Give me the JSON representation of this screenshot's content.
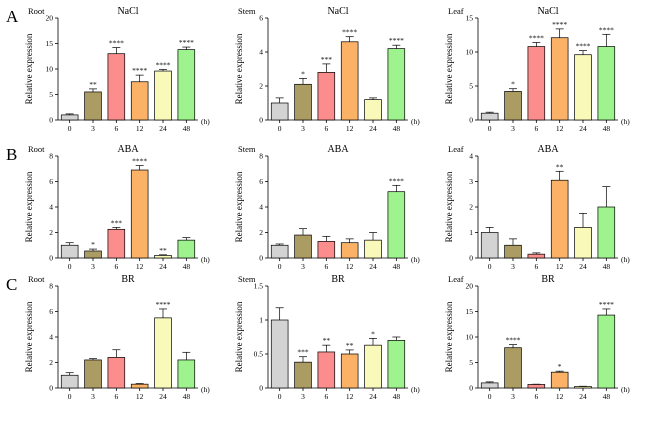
{
  "colors": [
    "#d3d3d3",
    "#ab9c63",
    "#fb8d8d",
    "#fbb266",
    "#f9f9b9",
    "#9ff38e"
  ],
  "rows": [
    "A",
    "B",
    "C"
  ],
  "common": {
    "ylabel": "Relative expression",
    "unit": "(h)",
    "categories": [
      "0",
      "3",
      "6",
      "12",
      "24",
      "48"
    ]
  },
  "chart_data": [
    {
      "type": "bar",
      "row": 0,
      "col": 0,
      "title": "NaCl",
      "organ": "Root",
      "categories": [
        "0",
        "3",
        "6",
        "12",
        "24",
        "48"
      ],
      "values": [
        1.0,
        5.5,
        13.0,
        7.5,
        9.6,
        13.8
      ],
      "errors": [
        0.2,
        0.6,
        1.2,
        1.3,
        0.3,
        0.5
      ],
      "stars": [
        "",
        "**",
        "****",
        "****",
        "****",
        "****"
      ],
      "ylim": [
        0,
        20
      ],
      "yticks": [
        0,
        5,
        10,
        15,
        20
      ],
      "xlabel": "(h)",
      "ylabel": "Relative expression"
    },
    {
      "type": "bar",
      "row": 0,
      "col": 1,
      "title": "NaCl",
      "organ": "Stem",
      "categories": [
        "0",
        "3",
        "6",
        "12",
        "24",
        "48"
      ],
      "values": [
        1.0,
        2.1,
        2.8,
        4.6,
        1.2,
        4.2
      ],
      "errors": [
        0.3,
        0.35,
        0.5,
        0.3,
        0.1,
        0.2
      ],
      "stars": [
        "",
        "*",
        "***",
        "****",
        "",
        "****"
      ],
      "ylim": [
        0,
        6
      ],
      "yticks": [
        0,
        2,
        4,
        6
      ],
      "xlabel": "(h)",
      "ylabel": "Relative expression"
    },
    {
      "type": "bar",
      "row": 0,
      "col": 2,
      "title": "NaCl",
      "organ": "Leaf",
      "categories": [
        "0",
        "3",
        "6",
        "12",
        "24",
        "48"
      ],
      "values": [
        1.0,
        4.2,
        10.8,
        12.1,
        9.6,
        10.8
      ],
      "errors": [
        0.15,
        0.4,
        0.6,
        1.3,
        0.6,
        1.8
      ],
      "stars": [
        "",
        "*",
        "****",
        "****",
        "****",
        "****"
      ],
      "ylim": [
        0,
        15
      ],
      "yticks": [
        0,
        5,
        10,
        15
      ],
      "xlabel": "(h)",
      "ylabel": "Relative expression"
    },
    {
      "type": "bar",
      "row": 1,
      "col": 0,
      "title": "ABA",
      "organ": "Root",
      "categories": [
        "0",
        "3",
        "6",
        "12",
        "24",
        "48"
      ],
      "values": [
        1.0,
        0.55,
        2.25,
        6.9,
        0.2,
        1.4
      ],
      "errors": [
        0.2,
        0.15,
        0.15,
        0.35,
        0.05,
        0.2
      ],
      "stars": [
        "",
        "*",
        "***",
        "****",
        "**",
        ""
      ],
      "ylim": [
        0,
        8
      ],
      "yticks": [
        0,
        2,
        4,
        6,
        8
      ],
      "xlabel": "(h)",
      "ylabel": "Relative expression"
    },
    {
      "type": "bar",
      "row": 1,
      "col": 1,
      "title": "ABA",
      "organ": "Stem",
      "categories": [
        "0",
        "3",
        "6",
        "12",
        "24",
        "48"
      ],
      "values": [
        1.0,
        1.8,
        1.3,
        1.2,
        1.4,
        5.2
      ],
      "errors": [
        0.1,
        0.5,
        0.4,
        0.3,
        0.6,
        0.5
      ],
      "stars": [
        "",
        "",
        "",
        "",
        "",
        "****"
      ],
      "ylim": [
        0,
        8
      ],
      "yticks": [
        0,
        2,
        4,
        6,
        8
      ],
      "xlabel": "(h)",
      "ylabel": "Relative expression"
    },
    {
      "type": "bar",
      "row": 1,
      "col": 2,
      "title": "ABA",
      "organ": "Leaf",
      "categories": [
        "0",
        "3",
        "6",
        "12",
        "24",
        "48"
      ],
      "values": [
        1.0,
        0.5,
        0.15,
        3.05,
        1.2,
        2.0
      ],
      "errors": [
        0.2,
        0.25,
        0.05,
        0.35,
        0.55,
        0.8
      ],
      "stars": [
        "",
        "",
        "",
        "**",
        "",
        ""
      ],
      "ylim": [
        0,
        4
      ],
      "yticks": [
        0,
        1,
        2,
        3,
        4
      ],
      "xlabel": "(h)",
      "ylabel": "Relative expression"
    },
    {
      "type": "bar",
      "row": 2,
      "col": 0,
      "title": "BR",
      "organ": "Root",
      "categories": [
        "0",
        "3",
        "6",
        "12",
        "24",
        "48"
      ],
      "values": [
        1.0,
        2.2,
        2.4,
        0.3,
        5.5,
        2.2
      ],
      "errors": [
        0.2,
        0.1,
        0.6,
        0.05,
        0.7,
        0.6
      ],
      "stars": [
        "",
        "",
        "",
        "",
        "****",
        ""
      ],
      "ylim": [
        0,
        8
      ],
      "yticks": [
        0,
        2,
        4,
        6,
        8
      ],
      "xlabel": "(h)",
      "ylabel": "Relative expression"
    },
    {
      "type": "bar",
      "row": 2,
      "col": 1,
      "title": "BR",
      "organ": "Stem",
      "categories": [
        "0",
        "3",
        "6",
        "12",
        "24",
        "48"
      ],
      "values": [
        1.0,
        0.38,
        0.53,
        0.5,
        0.63,
        0.7
      ],
      "errors": [
        0.18,
        0.08,
        0.1,
        0.06,
        0.1,
        0.05
      ],
      "stars": [
        "",
        "***",
        "**",
        "**",
        "*",
        ""
      ],
      "ylim": [
        0,
        1.5
      ],
      "yticks": [
        0.0,
        0.5,
        1.0,
        1.5
      ],
      "xlabel": "(h)",
      "ylabel": "Relative expression"
    },
    {
      "type": "bar",
      "row": 2,
      "col": 2,
      "title": "BR",
      "organ": "Leaf",
      "categories": [
        "0",
        "3",
        "6",
        "12",
        "24",
        "48"
      ],
      "values": [
        1.0,
        7.9,
        0.7,
        3.1,
        0.3,
        14.3
      ],
      "errors": [
        0.2,
        0.6,
        0.05,
        0.2,
        0.05,
        1.2
      ],
      "stars": [
        "",
        "****",
        "",
        "*",
        "",
        "****"
      ],
      "ylim": [
        0,
        20
      ],
      "yticks": [
        0,
        5,
        10,
        15,
        20
      ],
      "xlabel": "(h)",
      "ylabel": "Relative expression"
    }
  ]
}
